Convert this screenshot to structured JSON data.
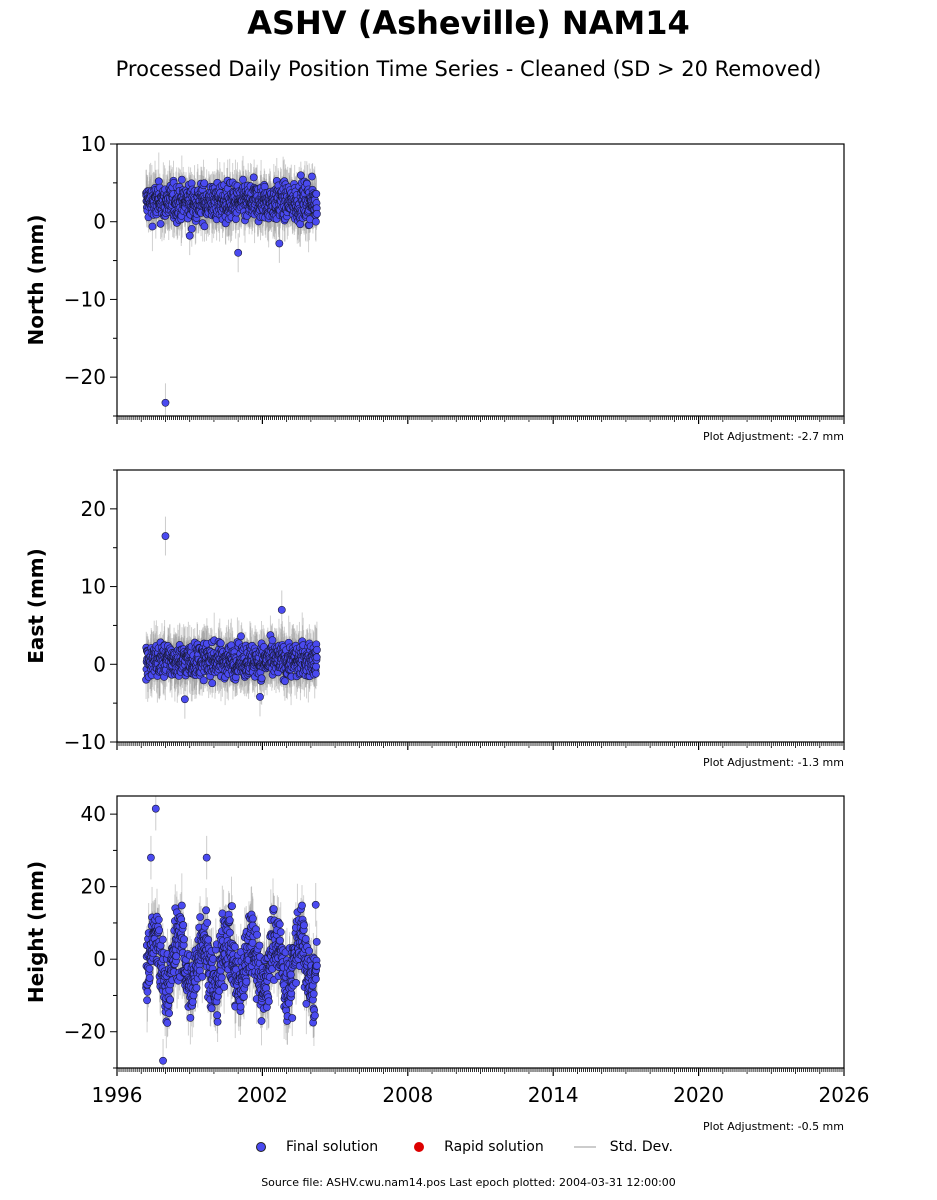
{
  "title": "ASHV (Asheville) NAM14",
  "subtitle": "Processed Daily Position Time Series - Cleaned (SD > 20 Removed)",
  "footer": "Source file: ASHV.cwu.nam14.pos  Last epoch plotted: 2004-03-31 12:00:00",
  "legend": [
    {
      "label": "Final solution",
      "color": "#4a4af0",
      "kind": "dot"
    },
    {
      "label": "Rapid solution",
      "color": "#dd0000",
      "kind": "dot"
    },
    {
      "label": "Std. Dev.",
      "color": "#cccccc",
      "kind": "line"
    }
  ],
  "chart_data": [
    {
      "type": "scatter",
      "ylabel": "North (mm)",
      "xlim": [
        1996,
        2026
      ],
      "ylim": [
        -25,
        10
      ],
      "yticks": [
        -20,
        -10,
        0,
        10
      ],
      "xticks": [
        1996,
        2002,
        2008,
        2014,
        2020,
        2026
      ],
      "show_xticklabels": false,
      "data_range": [
        1997.2,
        2004.25
      ],
      "adjustment": "Plot Adjustment: -2.7 mm",
      "series": [
        {
          "values": {
            "center": 2.5,
            "spread": 2.0,
            "sd": 2.5
          }
        }
      ],
      "outliers": [
        [
          1998.0,
          -23.3
        ],
        [
          2001.0,
          -4.0
        ],
        [
          1999.0,
          -1.8
        ],
        [
          2002.7,
          -2.8
        ]
      ]
    },
    {
      "type": "scatter",
      "ylabel": "East (mm)",
      "xlim": [
        1996,
        2026
      ],
      "ylim": [
        -10,
        25
      ],
      "yticks": [
        -10,
        0,
        10,
        20
      ],
      "xticks": [
        1996,
        2002,
        2008,
        2014,
        2020,
        2026
      ],
      "show_xticklabels": false,
      "data_range": [
        1997.2,
        2004.25
      ],
      "adjustment": "Plot Adjustment: -1.3 mm",
      "series": [
        {
          "values": {
            "center": 0.5,
            "spread": 1.8,
            "sd": 2.5
          }
        }
      ],
      "outliers": [
        [
          1998.0,
          16.5
        ],
        [
          2002.8,
          7.0
        ],
        [
          2001.9,
          -4.2
        ],
        [
          1998.8,
          -4.5
        ]
      ]
    },
    {
      "type": "scatter",
      "ylabel": "Height (mm)",
      "xlim": [
        1996,
        2026
      ],
      "ylim": [
        -30,
        45
      ],
      "yticks": [
        -20,
        0,
        20,
        40
      ],
      "xticks": [
        1996,
        2002,
        2008,
        2014,
        2020,
        2026
      ],
      "show_xticklabels": true,
      "data_range": [
        1997.2,
        2004.25
      ],
      "adjustment": "Plot Adjustment: -0.5 mm",
      "series": [
        {
          "values": {
            "center": -1.0,
            "spread": 8.0,
            "sd": 6.0,
            "annual_amplitude": 7.0
          }
        }
      ],
      "outliers": [
        [
          1997.6,
          41.5
        ],
        [
          1997.4,
          28.0
        ],
        [
          1999.7,
          28.0
        ],
        [
          1997.9,
          -28.0
        ],
        [
          2004.2,
          15.0
        ]
      ]
    }
  ]
}
